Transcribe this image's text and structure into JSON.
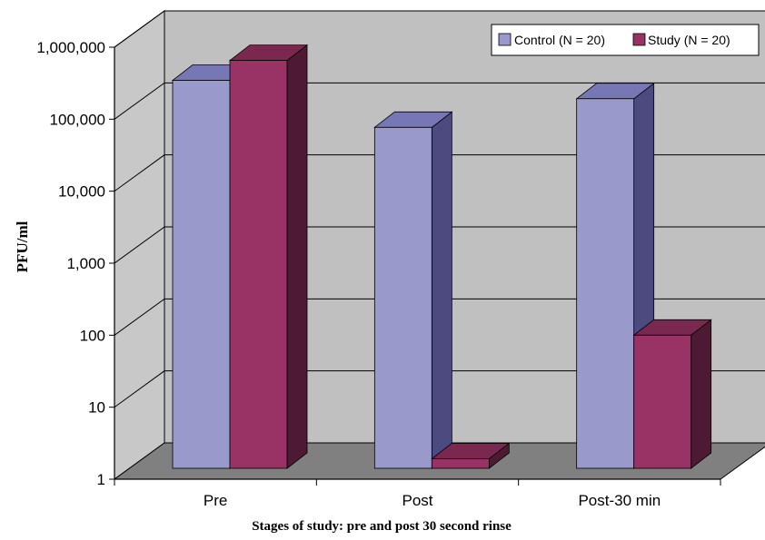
{
  "chart_data": {
    "type": "bar",
    "three_d": true,
    "xlabel": "Stages of study: pre and post 30 second rinse",
    "ylabel": "PFU/ml",
    "y_scale": "log",
    "ylim": [
      1,
      1000000
    ],
    "y_ticks": [
      {
        "value": 1,
        "label": "1"
      },
      {
        "value": 10,
        "label": "10"
      },
      {
        "value": 100,
        "label": "100"
      },
      {
        "value": 1000,
        "label": "1,000"
      },
      {
        "value": 10000,
        "label": "10,000"
      },
      {
        "value": 100000,
        "label": "100,000"
      },
      {
        "value": 1000000,
        "label": "1,000,000"
      }
    ],
    "categories": [
      "Pre",
      "Post",
      "Post-30 min"
    ],
    "series": [
      {
        "name": "Control (N = 20)",
        "values": [
          450000,
          100000,
          250000
        ],
        "color": "#9999cc",
        "side_color": "#4b4b80",
        "top_color": "#7777b5"
      },
      {
        "name": "Study (N = 20)",
        "values": [
          850000,
          2.5,
          130
        ],
        "color": "#993366",
        "side_color": "#4d1933",
        "top_color": "#7a2850"
      }
    ],
    "legend": {
      "position": "top-right"
    },
    "grid": true,
    "wall_color": "#c0c0c0",
    "floor_color": "#808080"
  }
}
